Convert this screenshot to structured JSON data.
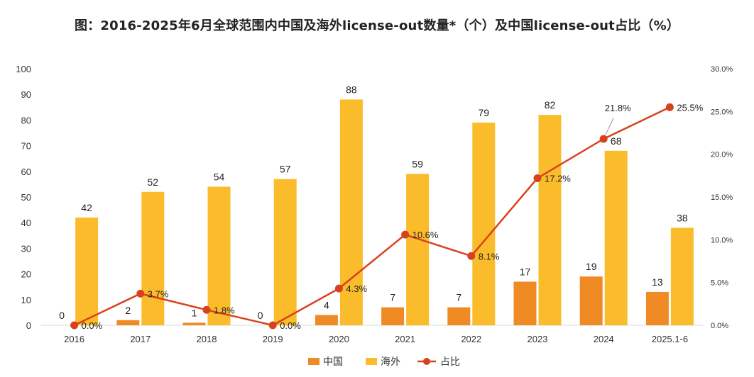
{
  "chart_data": {
    "type": "bar",
    "title": "图：2016-2025年6月全球范围内中国及海外license-out数量*（个）及中国license-out占比（%）",
    "categories": [
      "2016",
      "2017",
      "2018",
      "2019",
      "2020",
      "2021",
      "2022",
      "2023",
      "2024",
      "2025.1-6"
    ],
    "series": [
      {
        "name": "中国",
        "type": "bar",
        "axis": "left",
        "color": "#F08A24",
        "values": [
          0,
          2,
          1,
          0,
          4,
          7,
          7,
          17,
          19,
          13
        ]
      },
      {
        "name": "海外",
        "type": "bar",
        "axis": "left",
        "color": "#FBBC2B",
        "values": [
          42,
          52,
          54,
          57,
          88,
          59,
          79,
          82,
          68,
          38
        ]
      },
      {
        "name": "占比",
        "type": "line",
        "axis": "right",
        "color": "#D9411E",
        "values": [
          0.0,
          3.7,
          1.8,
          0.0,
          4.3,
          10.6,
          8.1,
          17.2,
          21.8,
          25.5
        ],
        "labels": [
          "0.0%",
          "3.7%",
          "1.8%",
          "0.0%",
          "4.3%",
          "10.6%",
          "8.1%",
          "17.2%",
          "21.8%",
          "25.5%"
        ]
      }
    ],
    "ylim_left": [
      0,
      100
    ],
    "yticks_left": [
      "0",
      "10",
      "20",
      "30",
      "40",
      "50",
      "60",
      "70",
      "80",
      "90",
      "100"
    ],
    "ylim_right": [
      0,
      30
    ],
    "yticks_right": [
      "0.0%",
      "5.0%",
      "10.0%",
      "15.0%",
      "20.0%",
      "25.0%",
      "30.0%"
    ],
    "legend": [
      "中国",
      "海外",
      "占比"
    ],
    "legend_position": "bottom"
  }
}
